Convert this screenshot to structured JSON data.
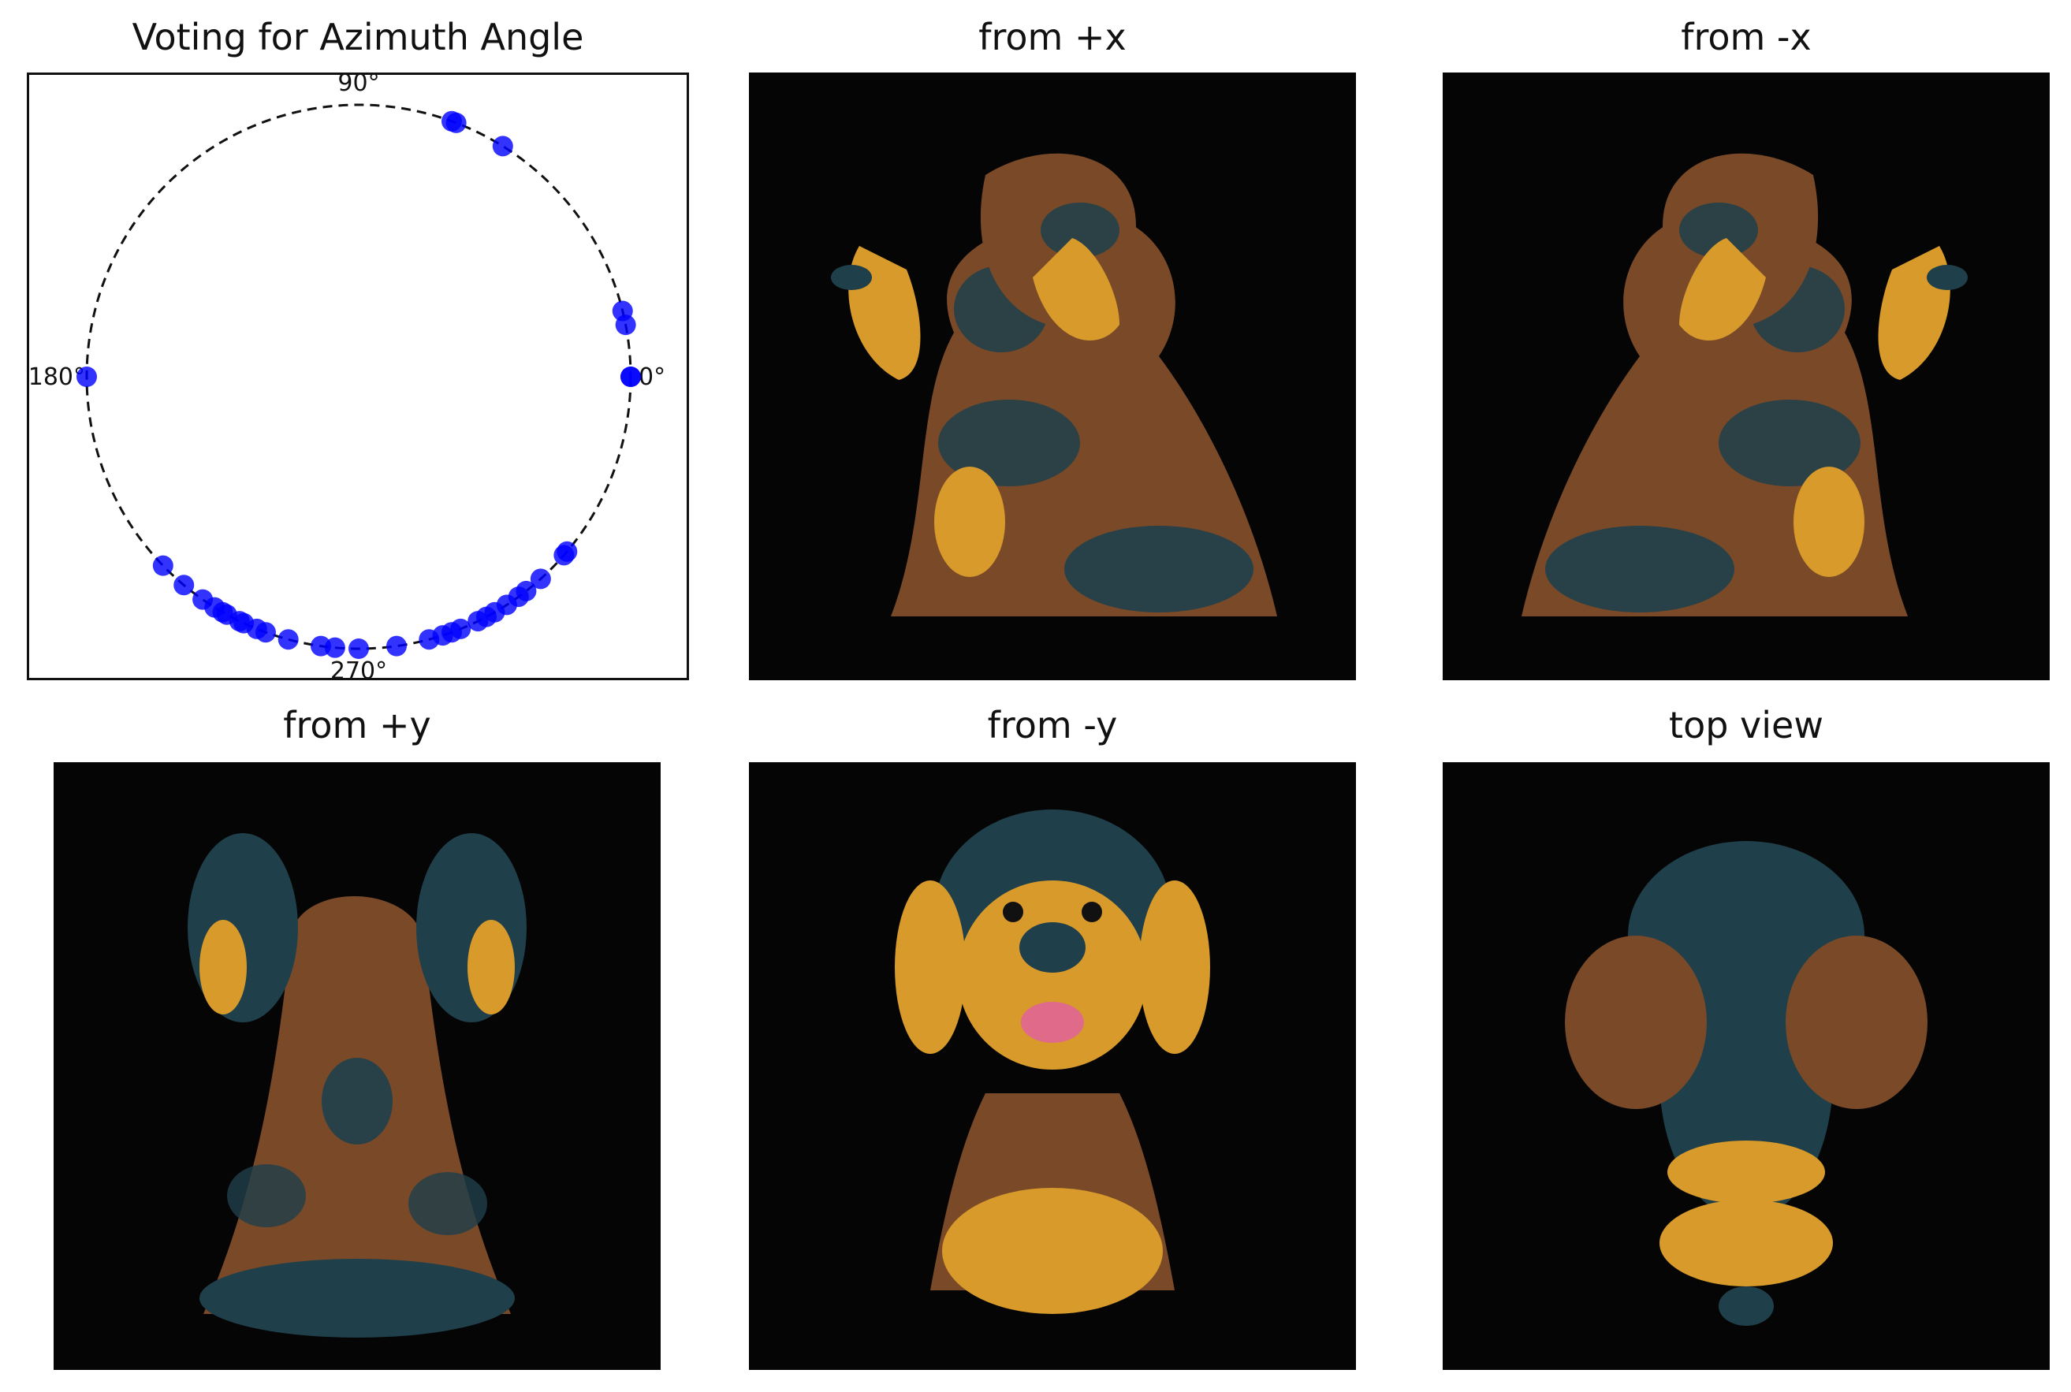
{
  "panels": {
    "azimuth": {
      "title": "Voting for Azimuth Angle"
    },
    "plus_x": {
      "title": "from +x"
    },
    "minus_x": {
      "title": "from -x"
    },
    "plus_y": {
      "title": "from +y"
    },
    "minus_y": {
      "title": "from -y"
    },
    "top": {
      "title": "top view"
    }
  },
  "chart_data": {
    "type": "scatter",
    "coordinate_system": "polar",
    "title": "Voting for Azimuth Angle",
    "angle_labels": [
      "0°",
      "90°",
      "180°",
      "270°"
    ],
    "radius": 1,
    "reference_circle": "dashed",
    "grid": false,
    "marker_color": "#0000ff",
    "angles_deg": [
      0,
      0,
      11,
      14,
      70,
      69,
      58,
      180,
      224,
      230,
      235,
      292,
      296,
      300,
      306,
      270,
      265,
      255,
      250,
      245,
      240,
      238,
      262,
      278,
      285,
      290,
      288,
      303,
      308,
      312,
      319,
      320,
      298,
      248,
      244,
      241
    ]
  },
  "colors": {
    "marker": "#0000ff",
    "background_view": "#050505",
    "coat_brown": "#7a4a28",
    "coat_teal": "#1f3f4a",
    "fur_gold": "#d89a2a"
  }
}
